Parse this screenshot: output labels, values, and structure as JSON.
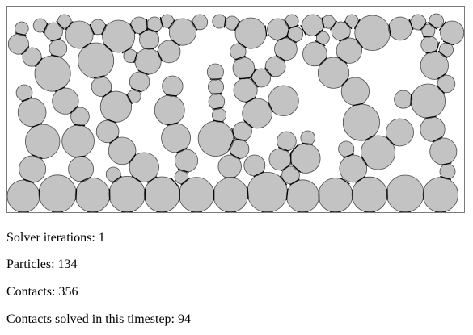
{
  "simulation": {
    "particle_fill": "#c3c3c3",
    "particle_stroke": "#4a4a4a",
    "contact_color": "#000000",
    "border_color": "#7a7a7a",
    "seed": 134
  },
  "stats": {
    "iterations_label": "Solver iterations:",
    "iterations_value": "1",
    "particles_label": "Particles:",
    "particles_value": "134",
    "contacts_label": "Contacts:",
    "contacts_value": "356",
    "solved_label": "Contacts solved in this timestep:",
    "solved_value": "94"
  }
}
